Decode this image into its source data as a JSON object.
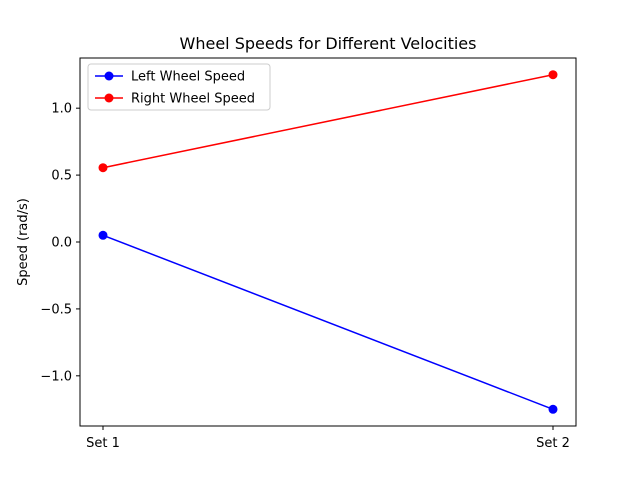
{
  "chart_data": {
    "type": "line",
    "title": "Wheel Speeds for Different Velocities",
    "xlabel": "",
    "ylabel": "Speed (rad/s)",
    "categories": [
      "Set 1",
      "Set 2"
    ],
    "series": [
      {
        "name": "Left Wheel Speed",
        "color": "#0000ff",
        "values": [
          0.05,
          -1.25
        ]
      },
      {
        "name": "Right Wheel Speed",
        "color": "#ff0000",
        "values": [
          0.555,
          1.25
        ]
      }
    ],
    "ylim": [
      -1.375,
      1.375
    ],
    "yticks": [
      -1.0,
      -0.5,
      0.0,
      0.5,
      1.0
    ],
    "ytick_labels": [
      "−1.0",
      "−0.5",
      "0.0",
      "0.5",
      "1.0"
    ],
    "grid": false,
    "legend_position": "top-left",
    "marker": "circle"
  }
}
